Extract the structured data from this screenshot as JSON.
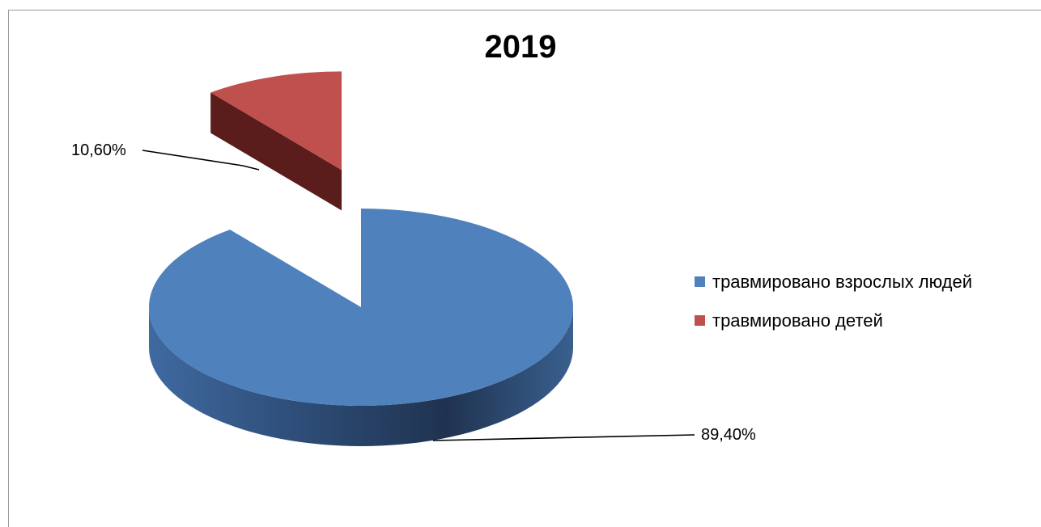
{
  "chart_data": {
    "type": "pie",
    "title": "2019",
    "slices": [
      {
        "name": "травмировано взрослых людей",
        "value": 89.4,
        "label": "89,40%",
        "color": "#4f81bd"
      },
      {
        "name": "травмировано детей",
        "value": 10.6,
        "label": "10,60%",
        "color": "#c0504d"
      }
    ],
    "legend_position": "right",
    "style": "3d-exploded"
  }
}
